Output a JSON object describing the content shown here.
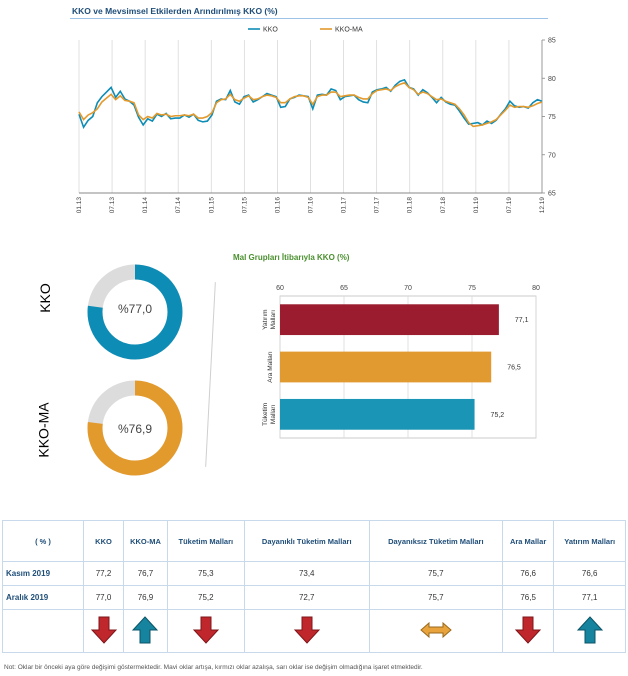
{
  "title": "KKO ve Mevsimsel Etkilerden Arındırılmış KKO (%)",
  "colors": {
    "kko": "#0d8cb5",
    "kko_ma": "#e39a2d",
    "title": "#1f4e79",
    "yatirim": "#9b1c2e",
    "ara": "#e09a30",
    "tuketim": "#1b95b5",
    "arrow_down": "#c0272d",
    "arrow_up": "#16849e",
    "arrow_flat": "#e8a33c"
  },
  "chart_data": [
    {
      "type": "line",
      "title": "KKO ve Mevsimsel Etkilerden Arındırılmış KKO (%)",
      "legend": {
        "position": "top-center",
        "entries": [
          "KKO",
          "KKO-MA"
        ]
      },
      "ylim": [
        65,
        85
      ],
      "yticks": [
        "65",
        "70",
        "75",
        "80",
        "85"
      ],
      "xticks": [
        "01.13",
        "07.13",
        "01.14",
        "07.14",
        "01.15",
        "07.15",
        "01.16",
        "07.16",
        "01.17",
        "07.17",
        "01.18",
        "07.18",
        "01.19",
        "07.19",
        "12.19"
      ],
      "grid": "vertical",
      "series": [
        {
          "name": "KKO",
          "values": [
            75.3,
            73.6,
            74.5,
            75.0,
            76.8,
            77.6,
            78.2,
            78.8,
            77.5,
            78.3,
            77.3,
            77.0,
            76.5,
            74.9,
            73.9,
            74.7,
            74.4,
            75.3,
            75.0,
            75.4,
            74.7,
            74.8,
            74.8,
            75.2,
            74.9,
            75.3,
            74.5,
            74.3,
            74.4,
            75.2,
            77.0,
            77.3,
            77.2,
            78.4,
            76.9,
            76.6,
            77.6,
            77.8,
            76.9,
            77.2,
            77.6,
            78.0,
            77.8,
            77.6,
            76.2,
            76.3,
            77.3,
            77.5,
            77.8,
            77.7,
            77.6,
            76.0,
            77.8,
            77.9,
            77.8,
            78.6,
            78.4,
            77.2,
            77.6,
            77.7,
            77.8,
            77.2,
            76.9,
            76.8,
            78.2,
            78.5,
            78.6,
            78.8,
            78.3,
            79.1,
            79.6,
            79.8,
            78.8,
            78.6,
            77.8,
            78.5,
            78.1,
            77.5,
            76.8,
            77.5,
            76.9,
            76.6,
            76.5,
            75.7,
            74.8,
            74.0,
            74.1,
            74.2,
            73.9,
            74.4,
            74.1,
            74.5,
            75.3,
            76.0,
            77.0,
            76.4,
            76.2,
            76.3,
            76.1,
            76.8,
            77.2,
            77.0
          ]
        },
        {
          "name": "KKO-MA",
          "values": [
            75.6,
            74.6,
            75.2,
            75.5,
            76.0,
            76.9,
            77.4,
            77.9,
            77.2,
            77.7,
            77.1,
            77.0,
            76.8,
            75.2,
            74.6,
            75.0,
            74.8,
            75.4,
            75.2,
            75.3,
            75.0,
            75.1,
            75.1,
            75.2,
            75.1,
            75.3,
            74.8,
            74.8,
            75.0,
            75.5,
            76.8,
            77.2,
            77.3,
            77.9,
            77.2,
            77.0,
            77.4,
            77.7,
            77.2,
            77.3,
            77.6,
            77.8,
            77.7,
            77.5,
            76.8,
            76.8,
            77.3,
            77.6,
            77.7,
            77.7,
            77.5,
            76.6,
            77.6,
            77.8,
            77.8,
            78.2,
            78.2,
            77.6,
            77.7,
            77.8,
            77.8,
            77.5,
            77.3,
            77.3,
            78.0,
            78.4,
            78.5,
            78.6,
            78.4,
            78.9,
            79.2,
            79.4,
            78.8,
            78.5,
            77.9,
            78.2,
            78.0,
            77.6,
            77.2,
            77.3,
            77.0,
            76.8,
            76.6,
            76.0,
            75.2,
            74.2,
            73.7,
            73.8,
            73.9,
            74.1,
            74.3,
            74.6,
            75.2,
            75.8,
            76.5,
            76.2,
            76.3,
            76.3,
            76.2,
            76.4,
            76.7,
            76.9
          ]
        }
      ]
    },
    {
      "type": "pie",
      "label": "KKO",
      "display": "%77,0",
      "value": 77.0,
      "remainder": 23.0
    },
    {
      "type": "pie",
      "label": "KKO-MA",
      "display": "%76,9",
      "value": 76.9,
      "remainder": 23.1
    },
    {
      "type": "bar",
      "orientation": "horizontal",
      "title": "Mal Grupları İtibarıyla KKO (%)",
      "xlim": [
        60,
        80
      ],
      "xticks": [
        "60",
        "65",
        "70",
        "75",
        "80"
      ],
      "categories": [
        [
          "Yatırım",
          "Malları"
        ],
        [
          "Ara Malları"
        ],
        [
          "Tüketim",
          "Malları"
        ]
      ],
      "values": [
        77.1,
        76.5,
        75.2
      ],
      "value_labels": [
        "77,1",
        "76,5",
        "75,2"
      ]
    }
  ],
  "table": {
    "headers": [
      "( % )",
      "KKO",
      "KKO-MA",
      "Tüketim Malları",
      "Dayanıklı Tüketim Malları",
      "Dayanıksız Tüketim Malları",
      "Ara Mallar",
      "Yatırım Malları"
    ],
    "rows": [
      {
        "label": "Kasım 2019",
        "values": [
          "77,2",
          "76,7",
          "75,3",
          "73,4",
          "75,7",
          "76,6",
          "76,6"
        ]
      },
      {
        "label": "Aralık 2019",
        "values": [
          "77,0",
          "76,9",
          "75,2",
          "72,7",
          "75,7",
          "76,5",
          "77,1"
        ]
      }
    ],
    "arrows": [
      "down",
      "up",
      "down",
      "down",
      "flat",
      "down",
      "up"
    ]
  },
  "note": "Not: Oklar bir önceki aya göre değişimi göstermektedir. Mavi oklar artışa, kırmızı oklar azalışa, sarı oklar ise değişim olmadığına işaret etmektedir."
}
